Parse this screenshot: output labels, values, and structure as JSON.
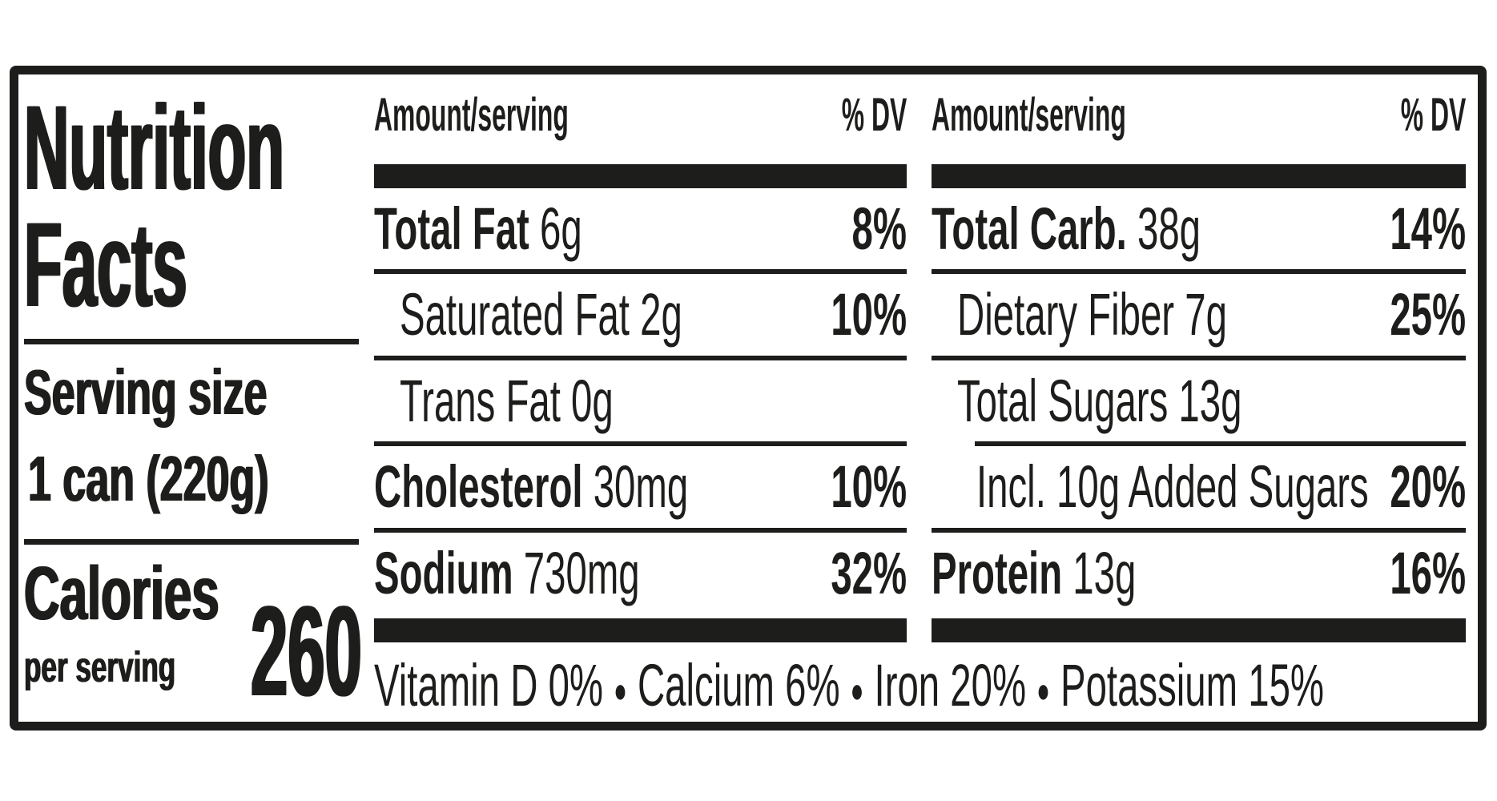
{
  "label": {
    "title_line1": "Nutrition",
    "title_line2": "Facts",
    "serving_size_label": "Serving size",
    "serving_size_value": "1 can (220g)",
    "calories_label": "Calories",
    "calories_sublabel": "per serving",
    "calories_value": "260",
    "col_header_amount": "Amount/serving",
    "col_header_dv": "% DV",
    "columns": [
      {
        "rows": [
          {
            "label": "Total Fat",
            "value": "6g",
            "dv": "8%",
            "bold": true,
            "indent": 0,
            "sep": "full"
          },
          {
            "label": "Saturated Fat",
            "value": "2g",
            "dv": "10%",
            "bold": false,
            "indent": 1,
            "sep": "full"
          },
          {
            "label": "Trans Fat",
            "value": "0g",
            "dv": "",
            "bold": false,
            "indent": 1,
            "sep": "full"
          },
          {
            "label": "Cholesterol",
            "value": "30mg",
            "dv": "10%",
            "bold": true,
            "indent": 0,
            "sep": "full"
          },
          {
            "label": "Sodium",
            "value": "730mg",
            "dv": "32%",
            "bold": true,
            "indent": 0,
            "sep": "none"
          }
        ]
      },
      {
        "rows": [
          {
            "label": "Total Carb.",
            "value": "38g",
            "dv": "14%",
            "bold": true,
            "indent": 0,
            "sep": "full"
          },
          {
            "label": "Dietary Fiber",
            "value": "7g",
            "dv": "25%",
            "bold": false,
            "indent": 1,
            "sep": "full"
          },
          {
            "label": "Total Sugars",
            "value": "13g",
            "dv": "",
            "bold": false,
            "indent": 1,
            "sep": "indent"
          },
          {
            "label": "Incl. 10g Added Sugars",
            "value": "",
            "dv": "20%",
            "bold": false,
            "indent": 2,
            "sep": "full"
          },
          {
            "label": "Protein",
            "value": "13g",
            "dv": "16%",
            "bold": true,
            "indent": 0,
            "sep": "none"
          }
        ]
      }
    ],
    "micronutrients": [
      {
        "name": "Vitamin D",
        "dv": "0%"
      },
      {
        "name": "Calcium",
        "dv": "6%"
      },
      {
        "name": "Iron",
        "dv": "20%"
      },
      {
        "name": "Potassium",
        "dv": "15%"
      }
    ],
    "colors": {
      "ink": "#1d1d1b",
      "background": "#ffffff"
    }
  }
}
